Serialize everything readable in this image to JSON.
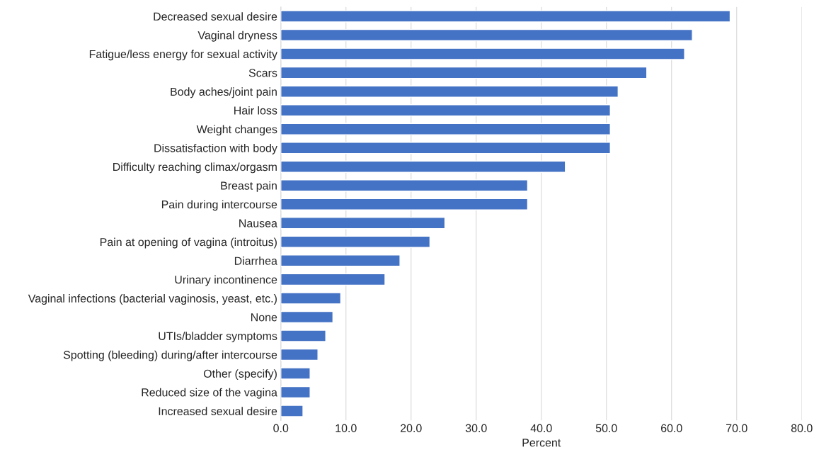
{
  "chart_data": {
    "type": "bar",
    "orientation": "horizontal",
    "xlabel": "Percent",
    "categories": [
      "Decreased sexual desire",
      "Vaginal dryness",
      "Fatigue/less energy for sexual activity",
      "Scars",
      "Body aches/joint pain",
      "Hair loss",
      "Weight changes",
      "Dissatisfaction with body",
      "Difficulty reaching climax/orgasm",
      "Breast pain",
      "Pain during intercourse",
      "Nausea",
      "Pain at opening of vagina (introitus)",
      "Diarrhea",
      "Urinary incontinence",
      "Vaginal infections (bacterial vaginosis, yeast, etc.)",
      "None",
      "UTIs/bladder symptoms",
      "Spotting (bleeding) during/after intercourse",
      "Other (specify)",
      "Reduced size of the vagina",
      "Increased sexual desire"
    ],
    "values": [
      69.0,
      63.2,
      62.0,
      56.2,
      51.8,
      50.6,
      50.6,
      50.6,
      43.7,
      37.9,
      37.9,
      25.2,
      22.9,
      18.3,
      16.0,
      9.2,
      8.0,
      6.9,
      5.7,
      4.5,
      4.5,
      3.4
    ],
    "color": "#4472c4",
    "xlim": [
      0,
      80
    ],
    "xticks": [
      {
        "value": 0,
        "label": "0.0"
      },
      {
        "value": 10,
        "label": "10.0"
      },
      {
        "value": 20,
        "label": "20.0"
      },
      {
        "value": 30,
        "label": "30.0"
      },
      {
        "value": 40,
        "label": "40.0"
      },
      {
        "value": 50,
        "label": "50.0"
      },
      {
        "value": 60,
        "label": "60.0"
      },
      {
        "value": 70,
        "label": "70.0"
      },
      {
        "value": 80,
        "label": "80.0"
      }
    ],
    "grid": "x"
  }
}
